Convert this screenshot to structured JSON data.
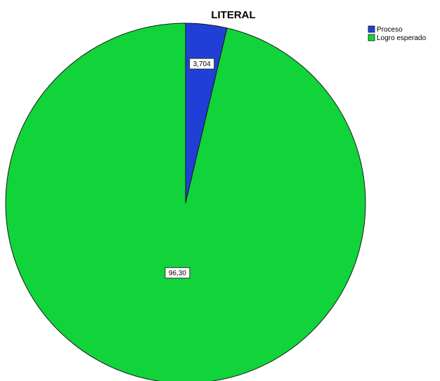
{
  "chart_data": {
    "type": "pie",
    "title": "LITERAL",
    "slices": [
      {
        "name": "Proceso",
        "value": 3.704,
        "label": "3,704",
        "color": "#1f3fd6"
      },
      {
        "name": "Logro esperado",
        "value": 96.3,
        "label": "96,30",
        "color": "#11d43a"
      }
    ],
    "legend_position": "top-right"
  }
}
